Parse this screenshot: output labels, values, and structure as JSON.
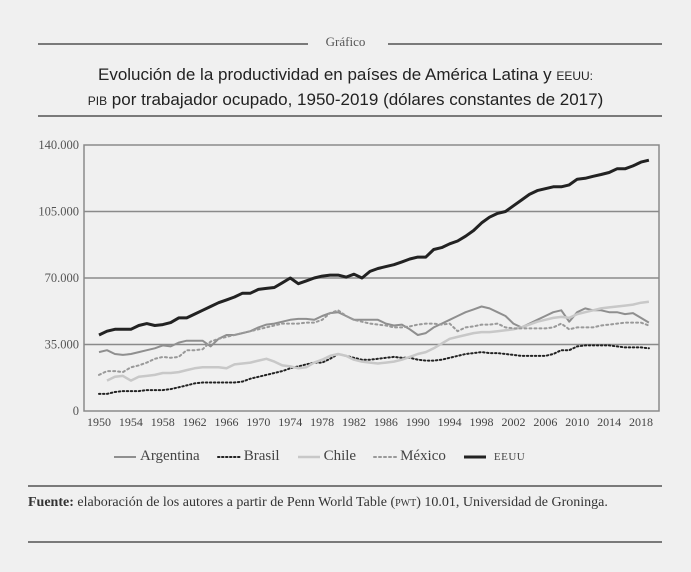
{
  "header": {
    "label": "Gráfico",
    "title_line1": "Evolución de la productividad en países de América Latina y ",
    "title_line1_sc": "EEUU:",
    "title_line2_sc": "PIB",
    "title_line2": " por trabajador ocupado, 1950-2019 (dólares constantes de 2017)"
  },
  "source": {
    "label": "Fuente:",
    "text_before": " elaboración de los autores a partir de Penn World Table (",
    "sc": "pwt",
    "text_after": ") 10.01, Universidad de Groninga."
  },
  "chart_data": {
    "type": "line",
    "title": "Evolución de la productividad en países de América Latina y EEUU: PIB por trabajador ocupado, 1950-2019 (dólares constantes de 2017)",
    "xlabel": "",
    "ylabel": "",
    "xlim": [
      1950,
      2019
    ],
    "ylim": [
      0,
      140000
    ],
    "grid": true,
    "legend_position": "bottom",
    "y_ticks": [
      0,
      35000,
      70000,
      105000,
      140000
    ],
    "y_tick_labels": [
      "0",
      "35.000",
      "70.000",
      "105.000",
      "140.000"
    ],
    "x_ticks": [
      1950,
      1954,
      1958,
      1962,
      1966,
      1970,
      1974,
      1978,
      1982,
      1986,
      1990,
      1994,
      1998,
      2002,
      2006,
      2010,
      2014,
      2018
    ],
    "x_tick_labels": [
      "1950",
      "1954",
      "1958",
      "1962",
      "1966",
      "1970",
      "1974",
      "1978",
      "1982",
      "1986",
      "1990",
      "1994",
      "1998",
      "2002",
      "2006",
      "2010",
      "2014",
      "2018"
    ],
    "x": [
      1950,
      1951,
      1952,
      1953,
      1954,
      1955,
      1956,
      1957,
      1958,
      1959,
      1960,
      1961,
      1962,
      1963,
      1964,
      1965,
      1966,
      1967,
      1968,
      1969,
      1970,
      1971,
      1972,
      1973,
      1974,
      1975,
      1976,
      1977,
      1978,
      1979,
      1980,
      1981,
      1982,
      1983,
      1984,
      1985,
      1986,
      1987,
      1988,
      1989,
      1990,
      1991,
      1992,
      1993,
      1994,
      1995,
      1996,
      1997,
      1998,
      1999,
      2000,
      2001,
      2002,
      2003,
      2004,
      2005,
      2006,
      2007,
      2008,
      2009,
      2010,
      2011,
      2012,
      2013,
      2014,
      2015,
      2016,
      2017,
      2018,
      2019
    ],
    "series": [
      {
        "name": "Argentina",
        "style": "solid-gray",
        "values": [
          31000,
          32000,
          30000,
          29500,
          30000,
          31000,
          32000,
          33000,
          34500,
          34000,
          36000,
          37000,
          37000,
          37000,
          34000,
          38000,
          40000,
          40000,
          41000,
          42000,
          44000,
          45500,
          46000,
          47000,
          48000,
          48500,
          48500,
          48000,
          50000,
          51500,
          52000,
          50000,
          48000,
          48000,
          48000,
          48000,
          46000,
          45000,
          45500,
          43000,
          40000,
          41000,
          44000,
          46000,
          48000,
          50000,
          52000,
          53500,
          55000,
          54000,
          52000,
          50000,
          46000,
          44000,
          46000,
          48000,
          50000,
          52000,
          53000,
          47000,
          52000,
          54000,
          53000,
          53000,
          52000,
          52000,
          51000,
          51500,
          49000,
          46500
        ]
      },
      {
        "name": "Brasil",
        "style": "dotted-black",
        "values": [
          9000,
          9000,
          10000,
          10500,
          10500,
          10500,
          11000,
          11000,
          11000,
          11500,
          12500,
          13500,
          14500,
          15000,
          15000,
          15000,
          15000,
          15000,
          15500,
          17000,
          18000,
          19000,
          20000,
          21000,
          22500,
          23500,
          24500,
          25500,
          25500,
          27500,
          30000,
          29000,
          28000,
          27000,
          27000,
          27500,
          28000,
          28500,
          28000,
          28000,
          27000,
          26500,
          26500,
          27000,
          28000,
          29000,
          30000,
          30500,
          31000,
          30500,
          30500,
          30000,
          29500,
          29000,
          29000,
          29000,
          29000,
          30000,
          32000,
          32000,
          34000,
          34500,
          34500,
          34500,
          34500,
          34000,
          33500,
          33500,
          33500,
          33000
        ]
      },
      {
        "name": "Chile",
        "style": "solid-light",
        "values": [
          null,
          16000,
          18000,
          18500,
          16000,
          18000,
          18500,
          19000,
          20000,
          20000,
          20500,
          21500,
          22500,
          23000,
          23000,
          23000,
          22500,
          24500,
          25000,
          25500,
          26500,
          27500,
          26000,
          24000,
          23500,
          22500,
          23000,
          25500,
          27000,
          29000,
          30000,
          29000,
          27000,
          26000,
          25500,
          25000,
          25500,
          26000,
          27000,
          28500,
          30000,
          31000,
          33000,
          35500,
          38000,
          39000,
          40000,
          41000,
          41500,
          41500,
          42000,
          42500,
          43000,
          44000,
          45500,
          47000,
          48000,
          49000,
          49500,
          49000,
          51000,
          52000,
          53000,
          54000,
          54500,
          55000,
          55500,
          56000,
          57000,
          57500
        ]
      },
      {
        "name": "México",
        "style": "dotted-gray",
        "values": [
          19000,
          21000,
          21000,
          20500,
          23000,
          24000,
          25500,
          27500,
          28500,
          28000,
          28500,
          32000,
          32000,
          32500,
          36500,
          38000,
          39000,
          40000,
          41000,
          42000,
          43000,
          44000,
          45000,
          46000,
          46000,
          46000,
          46500,
          46500,
          48000,
          51500,
          53000,
          50000,
          48000,
          47000,
          46000,
          45500,
          45000,
          44000,
          44000,
          44500,
          45500,
          46000,
          46000,
          45500,
          46000,
          42000,
          44000,
          44500,
          45500,
          45500,
          46000,
          44000,
          43500,
          43500,
          43500,
          43500,
          43500,
          44000,
          46000,
          43000,
          44000,
          44000,
          44000,
          45000,
          45500,
          46000,
          46500,
          46500,
          46500,
          45000
        ]
      },
      {
        "name": "EEUU",
        "style": "solid-black",
        "values": [
          40000,
          42000,
          43000,
          43000,
          43000,
          45000,
          46000,
          45000,
          45500,
          46500,
          49000,
          49000,
          51000,
          53000,
          55000,
          57000,
          58500,
          60000,
          62000,
          62000,
          64000,
          64500,
          65000,
          67500,
          70000,
          67000,
          68500,
          70000,
          71000,
          71500,
          71500,
          70500,
          72000,
          70000,
          73500,
          75000,
          76000,
          77000,
          78500,
          80000,
          81000,
          81000,
          85000,
          86000,
          88000,
          89500,
          92000,
          95000,
          99000,
          102000,
          104000,
          105000,
          108000,
          111000,
          114000,
          116000,
          117000,
          118000,
          118000,
          119000,
          122000,
          122500,
          123500,
          124500,
          125500,
          127500,
          127500,
          129000,
          131000,
          132000
        ]
      }
    ],
    "legend": [
      "Argentina",
      "Brasil",
      "Chile",
      "México",
      "EEUU"
    ]
  }
}
